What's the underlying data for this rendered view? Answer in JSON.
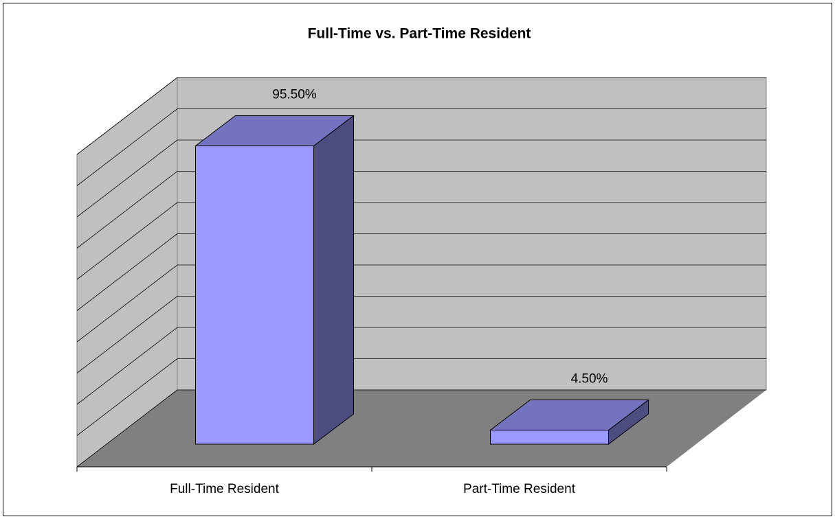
{
  "chart_data": {
    "type": "bar3d",
    "title": "Full-Time vs. Part-Time Resident",
    "categories": [
      "Full-Time Resident",
      "Part-Time Resident"
    ],
    "values": [
      95.5,
      4.5
    ],
    "value_labels": [
      "95.50%",
      "4.50%"
    ],
    "color": "#9999ff",
    "ylim": [
      0,
      100
    ],
    "yticks": [
      0,
      10,
      20,
      30,
      40,
      50,
      60,
      70,
      80,
      90,
      100
    ],
    "grid": true
  }
}
